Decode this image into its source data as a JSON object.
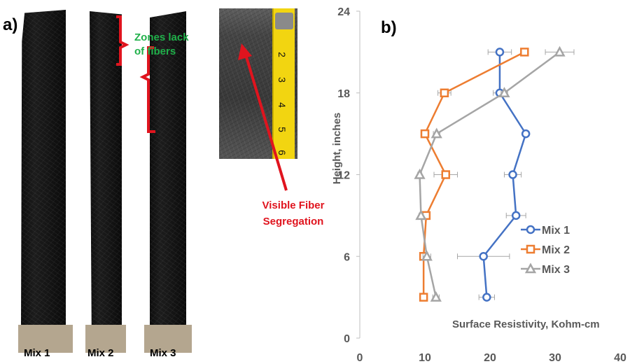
{
  "panel_a": {
    "label": "a)",
    "specimens": [
      {
        "label": "Mix 1"
      },
      {
        "label": "Mix 2"
      },
      {
        "label": "Mix 3"
      }
    ],
    "annotation_zones": "Zones lack of fibers",
    "annotation_zones_lines": [
      "Zones lack",
      "of fibers"
    ],
    "annotation_segregation_lines": [
      "Visible Fiber",
      "Segregation"
    ],
    "tape_numbers": [
      "2",
      "3",
      "4",
      "5",
      "6"
    ],
    "colors": {
      "annotation_green": "#20b04a",
      "annotation_red": "#e0141e",
      "bracket": "#e0141e",
      "tape": "#f2d511"
    }
  },
  "panel_b": {
    "label": "b)"
  },
  "chart_data": {
    "type": "line",
    "orientation": "depth-profile",
    "xlabel": "Surface Resistivity, Kohm-cm",
    "ylabel": "Height, inches",
    "xlim": [
      0,
      40
    ],
    "ylim": [
      0,
      24
    ],
    "xticks": [
      0,
      10,
      20,
      30,
      40
    ],
    "yticks": [
      0,
      6,
      12,
      18,
      24
    ],
    "grid": false,
    "legend_position": "right",
    "series": [
      {
        "name": "Mix 1",
        "color": "#4472c4",
        "marker": "circle",
        "points": [
          {
            "x": 19.5,
            "y": 3,
            "err": 1.2
          },
          {
            "x": 19,
            "y": 6,
            "err": 4
          },
          {
            "x": 24,
            "y": 9,
            "err": 1.5
          },
          {
            "x": 23.5,
            "y": 12,
            "err": 1.3
          },
          {
            "x": 25.5,
            "y": 15,
            "err": 0.4
          },
          {
            "x": 21.5,
            "y": 18,
            "err": 1
          },
          {
            "x": 21.5,
            "y": 21,
            "err": 1.8
          }
        ]
      },
      {
        "name": "Mix 2",
        "color": "#ed7d31",
        "marker": "square",
        "points": [
          {
            "x": 9.8,
            "y": 3,
            "err": 0.2
          },
          {
            "x": 9.8,
            "y": 6,
            "err": 0.3
          },
          {
            "x": 10.2,
            "y": 9,
            "err": 0.3
          },
          {
            "x": 13.2,
            "y": 12,
            "err": 1.8
          },
          {
            "x": 10,
            "y": 15,
            "err": 0.6
          },
          {
            "x": 13,
            "y": 18,
            "err": 1
          },
          {
            "x": 25.3,
            "y": 21,
            "err": 0.3
          }
        ]
      },
      {
        "name": "Mix 3",
        "color": "#a5a5a5",
        "marker": "triangle",
        "points": [
          {
            "x": 11.7,
            "y": 3,
            "err": 0.5
          },
          {
            "x": 10.3,
            "y": 6,
            "err": 0.6
          },
          {
            "x": 9.4,
            "y": 9,
            "err": 0.3
          },
          {
            "x": 9.2,
            "y": 12,
            "err": 0.3
          },
          {
            "x": 11.8,
            "y": 15,
            "err": 0.5
          },
          {
            "x": 22.2,
            "y": 18,
            "err": 0.5
          },
          {
            "x": 30.7,
            "y": 21,
            "err": 2.2
          }
        ]
      }
    ]
  }
}
